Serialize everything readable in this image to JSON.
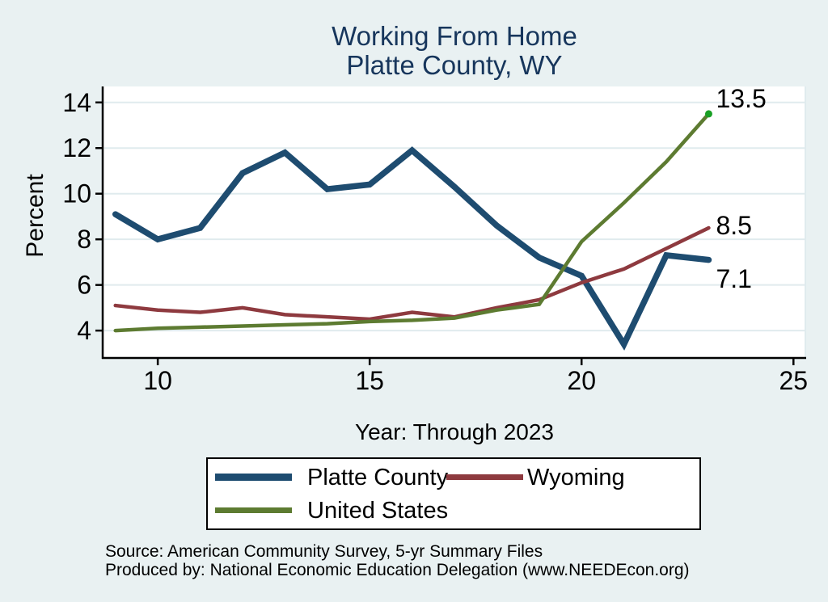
{
  "title": {
    "line1": "Working From Home",
    "line2": "Platte County, WY"
  },
  "colors": {
    "title": "#17365c",
    "background": "#e9f1f2",
    "plot_background": "#ffffff",
    "gridline": "#e0ebee",
    "axis": "#000000"
  },
  "chart_data": {
    "type": "line",
    "title": "Working From Home - Platte County, WY",
    "xlabel": "Year: Through 2023",
    "ylabel": "Percent",
    "x": [
      2009,
      2010,
      2011,
      2012,
      2013,
      2014,
      2015,
      2016,
      2017,
      2018,
      2019,
      2020,
      2021,
      2022,
      2023
    ],
    "series": [
      {
        "name": "Platte County",
        "color": "#1e4c70",
        "line_width": 7.5,
        "values": [
          9.1,
          8.0,
          8.5,
          10.9,
          11.8,
          10.2,
          10.4,
          11.9,
          10.3,
          8.6,
          7.2,
          6.4,
          3.4,
          7.3,
          7.1
        ],
        "end_label": "7.1"
      },
      {
        "name": "Wyoming",
        "color": "#8e3a3f",
        "line_width": 4.5,
        "values": [
          5.1,
          4.9,
          4.8,
          5.0,
          4.7,
          4.6,
          4.5,
          4.8,
          4.6,
          5.0,
          5.35,
          6.1,
          6.7,
          7.6,
          8.5
        ],
        "end_label": "8.5"
      },
      {
        "name": "United States",
        "color": "#5d7b31",
        "line_width": 4.5,
        "values": [
          4.0,
          4.1,
          4.15,
          4.2,
          4.25,
          4.3,
          4.4,
          4.45,
          4.55,
          4.9,
          5.15,
          7.9,
          9.6,
          11.4,
          13.5
        ],
        "end_label": "13.5",
        "end_marker": true,
        "marker_color": "#18a024"
      }
    ],
    "x_ticks": [
      {
        "at": 2010,
        "label": "10"
      },
      {
        "at": 2015,
        "label": "15"
      },
      {
        "at": 2020,
        "label": "20"
      },
      {
        "at": 2025,
        "label": "25"
      }
    ],
    "y_ticks": [
      {
        "at": 4,
        "label": "4"
      },
      {
        "at": 6,
        "label": "6"
      },
      {
        "at": 8,
        "label": "8"
      },
      {
        "at": 10,
        "label": "10"
      },
      {
        "at": 12,
        "label": "12"
      },
      {
        "at": 14,
        "label": "14"
      }
    ],
    "xlim": [
      2008.7,
      2025.3
    ],
    "ylim": [
      2.8,
      14.7
    ],
    "grid": true,
    "legend_position": "bottom"
  },
  "source": {
    "line1": "Source: American Community Survey, 5-yr Summary Files",
    "line2": "Produced by: National Economic Education Delegation (www.NEEDEcon.org)"
  }
}
